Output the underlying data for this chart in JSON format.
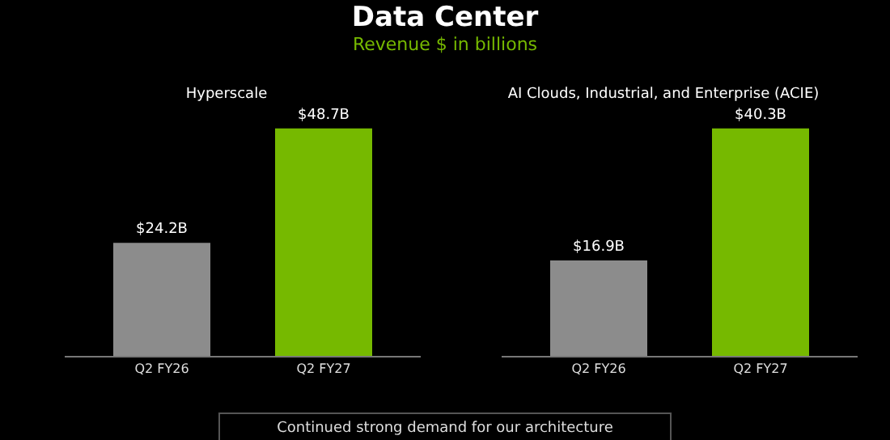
{
  "chart_data": [
    {
      "type": "other",
      "title": "Data Center",
      "subtitle": "Revenue $ in billions",
      "annotations": [
        "Continued strong demand for our architecture"
      ]
    },
    {
      "type": "bar",
      "title": "Hyperscale",
      "categories": [
        "Q2 FY26",
        "Q2 FY27"
      ],
      "values": [
        24.2,
        48.7
      ],
      "value_labels": [
        "$24.2B",
        "$48.7B"
      ],
      "colors": [
        "#8c8c8c",
        "#76b900"
      ]
    },
    {
      "type": "bar",
      "title": "AI Clouds, Industrial, and Enterprise (ACIE)",
      "categories": [
        "Q2 FY26",
        "Q2 FY27"
      ],
      "values": [
        16.9,
        40.3
      ],
      "value_labels": [
        "$16.9B",
        "$40.3B"
      ],
      "colors": [
        "#8c8c8c",
        "#76b900"
      ]
    }
  ]
}
